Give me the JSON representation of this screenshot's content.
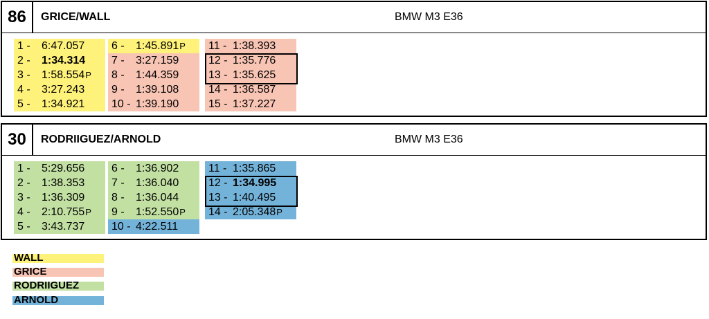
{
  "colors": {
    "wall": "#fff27a",
    "grice": "#f8c4b4",
    "rodriiguez": "#c3e0a3",
    "arnold": "#74b3d9"
  },
  "entries": [
    {
      "number": "86",
      "team": "GRICE/WALL",
      "car": "BMW M3 E36",
      "columns": [
        [
          {
            "n": "1 -",
            "t": "6:47.057",
            "driver": "wall"
          },
          {
            "n": "2 -",
            "t": "1:34.314",
            "driver": "wall",
            "best": true
          },
          {
            "n": "3 -",
            "t": "1:58.554",
            "driver": "wall",
            "pit": "P"
          },
          {
            "n": "4 -",
            "t": "3:27.243",
            "driver": "wall"
          },
          {
            "n": "5 -",
            "t": "1:34.921",
            "driver": "wall"
          }
        ],
        [
          {
            "n": "6 -",
            "t": "1:45.891",
            "driver": "wall",
            "pit": "P"
          },
          {
            "n": "7 -",
            "t": "3:27.159",
            "driver": "grice"
          },
          {
            "n": "8 -",
            "t": "1:44.359",
            "driver": "grice"
          },
          {
            "n": "9 -",
            "t": "1:39.108",
            "driver": "grice"
          },
          {
            "n": "10 -",
            "t": "1:39.190",
            "driver": "grice"
          }
        ],
        [
          {
            "n": "11 -",
            "t": "1:38.393",
            "driver": "grice"
          },
          {
            "n": "12 -",
            "t": "1:35.776",
            "driver": "grice"
          },
          {
            "n": "13 -",
            "t": "1:35.625",
            "driver": "grice"
          },
          {
            "n": "14 -",
            "t": "1:36.587",
            "driver": "grice"
          },
          {
            "n": "15 -",
            "t": "1:37.227",
            "driver": "grice"
          }
        ]
      ]
    },
    {
      "number": "30",
      "team": "RODRIIGUEZ/ARNOLD",
      "car": "BMW M3 E36",
      "columns": [
        [
          {
            "n": "1 -",
            "t": "5:29.656",
            "driver": "rodriiguez"
          },
          {
            "n": "2 -",
            "t": "1:38.353",
            "driver": "rodriiguez"
          },
          {
            "n": "3 -",
            "t": "1:36.309",
            "driver": "rodriiguez"
          },
          {
            "n": "4 -",
            "t": "2:10.755",
            "driver": "rodriiguez",
            "pit": "P"
          },
          {
            "n": "5 -",
            "t": "3:43.737",
            "driver": "rodriiguez"
          }
        ],
        [
          {
            "n": "6 -",
            "t": "1:36.902",
            "driver": "rodriiguez"
          },
          {
            "n": "7 -",
            "t": "1:36.040",
            "driver": "rodriiguez"
          },
          {
            "n": "8 -",
            "t": "1:36.044",
            "driver": "rodriiguez"
          },
          {
            "n": "9 -",
            "t": "1:52.550",
            "driver": "rodriiguez",
            "pit": "P"
          },
          {
            "n": "10 -",
            "t": "4:22.511",
            "driver": "arnold"
          }
        ],
        [
          {
            "n": "11 -",
            "t": "1:35.865",
            "driver": "arnold"
          },
          {
            "n": "12 -",
            "t": "1:34.995",
            "driver": "arnold",
            "best": true
          },
          {
            "n": "13 -",
            "t": "1:40.495",
            "driver": "arnold"
          },
          {
            "n": "14 -",
            "t": "2:05.348",
            "driver": "arnold",
            "pit": "P"
          }
        ]
      ]
    }
  ],
  "legend": [
    {
      "label": "WALL",
      "driver": "wall"
    },
    {
      "label": "GRICE",
      "driver": "grice"
    },
    {
      "label": "RODRIIGUEZ",
      "driver": "rodriiguez"
    },
    {
      "label": "ARNOLD",
      "driver": "arnold"
    }
  ]
}
